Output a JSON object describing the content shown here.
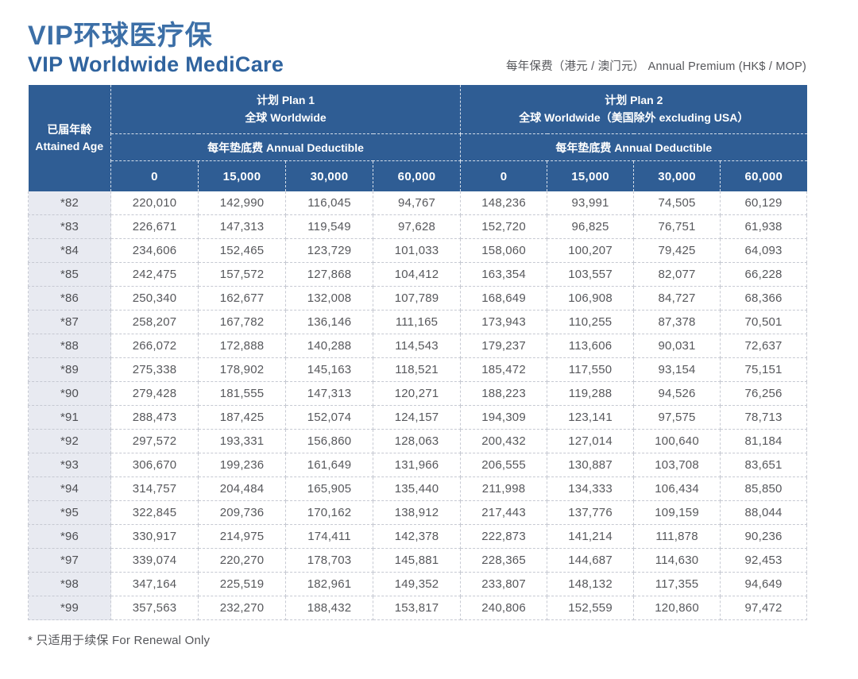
{
  "page": {
    "title_zh": "VIP环球医疗保",
    "title_en": "VIP Worldwide MediCare",
    "premium_note": "每年保费（港元 / 澳门元） Annual Premium (HK$ / MOP)",
    "footnote": "* 只适用于续保 For Renewal Only"
  },
  "colors": {
    "header_blue": "#2f5d94",
    "title_blue": "#3c6fa7",
    "age_column_bg": "#e8eaf1",
    "body_text": "#57585c"
  },
  "table": {
    "age_header_zh": "已届年龄",
    "age_header_en": "Attained Age",
    "plans": [
      {
        "name_line1": "计划 Plan 1",
        "name_line2": "全球 Worldwide",
        "deductible_label": "每年垫底费 Annual Deductible",
        "deductibles": [
          "0",
          "15,000",
          "30,000",
          "60,000"
        ]
      },
      {
        "name_line1": "计划 Plan 2",
        "name_line2": "全球 Worldwide（美国除外 excluding USA）",
        "deductible_label": "每年垫底费 Annual Deductible",
        "deductibles": [
          "0",
          "15,000",
          "30,000",
          "60,000"
        ]
      }
    ],
    "rows": [
      {
        "age": "*82",
        "plan1": [
          "220,010",
          "142,990",
          "116,045",
          "94,767"
        ],
        "plan2": [
          "148,236",
          "93,991",
          "74,505",
          "60,129"
        ]
      },
      {
        "age": "*83",
        "plan1": [
          "226,671",
          "147,313",
          "119,549",
          "97,628"
        ],
        "plan2": [
          "152,720",
          "96,825",
          "76,751",
          "61,938"
        ]
      },
      {
        "age": "*84",
        "plan1": [
          "234,606",
          "152,465",
          "123,729",
          "101,033"
        ],
        "plan2": [
          "158,060",
          "100,207",
          "79,425",
          "64,093"
        ]
      },
      {
        "age": "*85",
        "plan1": [
          "242,475",
          "157,572",
          "127,868",
          "104,412"
        ],
        "plan2": [
          "163,354",
          "103,557",
          "82,077",
          "66,228"
        ]
      },
      {
        "age": "*86",
        "plan1": [
          "250,340",
          "162,677",
          "132,008",
          "107,789"
        ],
        "plan2": [
          "168,649",
          "106,908",
          "84,727",
          "68,366"
        ]
      },
      {
        "age": "*87",
        "plan1": [
          "258,207",
          "167,782",
          "136,146",
          "111,165"
        ],
        "plan2": [
          "173,943",
          "110,255",
          "87,378",
          "70,501"
        ]
      },
      {
        "age": "*88",
        "plan1": [
          "266,072",
          "172,888",
          "140,288",
          "114,543"
        ],
        "plan2": [
          "179,237",
          "113,606",
          "90,031",
          "72,637"
        ]
      },
      {
        "age": "*89",
        "plan1": [
          "275,338",
          "178,902",
          "145,163",
          "118,521"
        ],
        "plan2": [
          "185,472",
          "117,550",
          "93,154",
          "75,151"
        ]
      },
      {
        "age": "*90",
        "plan1": [
          "279,428",
          "181,555",
          "147,313",
          "120,271"
        ],
        "plan2": [
          "188,223",
          "119,288",
          "94,526",
          "76,256"
        ]
      },
      {
        "age": "*91",
        "plan1": [
          "288,473",
          "187,425",
          "152,074",
          "124,157"
        ],
        "plan2": [
          "194,309",
          "123,141",
          "97,575",
          "78,713"
        ]
      },
      {
        "age": "*92",
        "plan1": [
          "297,572",
          "193,331",
          "156,860",
          "128,063"
        ],
        "plan2": [
          "200,432",
          "127,014",
          "100,640",
          "81,184"
        ]
      },
      {
        "age": "*93",
        "plan1": [
          "306,670",
          "199,236",
          "161,649",
          "131,966"
        ],
        "plan2": [
          "206,555",
          "130,887",
          "103,708",
          "83,651"
        ]
      },
      {
        "age": "*94",
        "plan1": [
          "314,757",
          "204,484",
          "165,905",
          "135,440"
        ],
        "plan2": [
          "211,998",
          "134,333",
          "106,434",
          "85,850"
        ]
      },
      {
        "age": "*95",
        "plan1": [
          "322,845",
          "209,736",
          "170,162",
          "138,912"
        ],
        "plan2": [
          "217,443",
          "137,776",
          "109,159",
          "88,044"
        ]
      },
      {
        "age": "*96",
        "plan1": [
          "330,917",
          "214,975",
          "174,411",
          "142,378"
        ],
        "plan2": [
          "222,873",
          "141,214",
          "111,878",
          "90,236"
        ]
      },
      {
        "age": "*97",
        "plan1": [
          "339,074",
          "220,270",
          "178,703",
          "145,881"
        ],
        "plan2": [
          "228,365",
          "144,687",
          "114,630",
          "92,453"
        ]
      },
      {
        "age": "*98",
        "plan1": [
          "347,164",
          "225,519",
          "182,961",
          "149,352"
        ],
        "plan2": [
          "233,807",
          "148,132",
          "117,355",
          "94,649"
        ]
      },
      {
        "age": "*99",
        "plan1": [
          "357,563",
          "232,270",
          "188,432",
          "153,817"
        ],
        "plan2": [
          "240,806",
          "152,559",
          "120,860",
          "97,472"
        ]
      }
    ]
  }
}
